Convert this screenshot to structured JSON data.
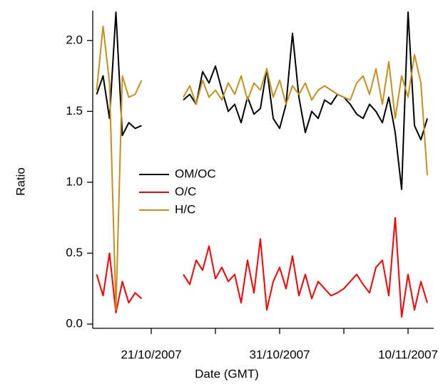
{
  "chart_data": {
    "type": "line",
    "xlabel": "Date (GMT)",
    "ylabel": "Ratio",
    "x": [
      "2007-10-16T18:00",
      "2007-10-17T06:00",
      "2007-10-17T18:00",
      "2007-10-18T06:00",
      "2007-10-18T18:00",
      "2007-10-19T06:00",
      "2007-10-19T18:00",
      "2007-10-20T06:00",
      "2007-10-22T00:00",
      "2007-10-23T12:00",
      "2007-10-24T00:00",
      "2007-10-24T12:00",
      "2007-10-25T00:00",
      "2007-10-25T12:00",
      "2007-10-26T00:00",
      "2007-10-26T12:00",
      "2007-10-27T00:00",
      "2007-10-27T12:00",
      "2007-10-28T00:00",
      "2007-10-28T12:00",
      "2007-10-29T00:00",
      "2007-10-29T12:00",
      "2007-10-30T00:00",
      "2007-10-30T12:00",
      "2007-10-31T00:00",
      "2007-10-31T12:00",
      "2007-11-01T00:00",
      "2007-11-01T12:00",
      "2007-11-02T00:00",
      "2007-11-02T12:00",
      "2007-11-03T00:00",
      "2007-11-03T12:00",
      "2007-11-04T00:00",
      "2007-11-04T12:00",
      "2007-11-05T00:00",
      "2007-11-05T12:00",
      "2007-11-06T00:00",
      "2007-11-06T12:00",
      "2007-11-07T00:00",
      "2007-11-07T12:00",
      "2007-11-08T00:00",
      "2007-11-08T12:00",
      "2007-11-09T00:00",
      "2007-11-09T12:00",
      "2007-11-10T00:00",
      "2007-11-10T12:00",
      "2007-11-11T00:00",
      "2007-11-11T12:00"
    ],
    "series": [
      {
        "name": "OM/OC",
        "color": "#000000",
        "values": [
          1.62,
          1.75,
          1.45,
          2.2,
          1.33,
          1.42,
          1.38,
          1.4,
          null,
          1.58,
          1.62,
          1.55,
          1.78,
          1.7,
          1.82,
          1.65,
          1.5,
          1.55,
          1.42,
          1.6,
          1.48,
          1.52,
          1.8,
          1.45,
          1.38,
          1.55,
          2.05,
          1.6,
          1.35,
          1.5,
          1.45,
          1.58,
          1.55,
          1.62,
          1.6,
          1.55,
          1.48,
          1.45,
          1.55,
          1.5,
          1.42,
          1.6,
          1.35,
          0.95,
          2.2,
          1.4,
          1.3,
          1.45
        ]
      },
      {
        "name": "O/C",
        "color": "#ff0000",
        "values": [
          0.35,
          0.2,
          0.5,
          0.08,
          0.3,
          0.15,
          0.22,
          0.18,
          null,
          0.35,
          0.28,
          0.45,
          0.38,
          0.55,
          0.32,
          0.4,
          0.3,
          0.35,
          0.15,
          0.45,
          0.22,
          0.6,
          0.1,
          0.3,
          0.4,
          0.25,
          0.48,
          0.2,
          0.35,
          0.18,
          0.3,
          0.25,
          0.2,
          0.22,
          0.25,
          0.3,
          0.35,
          0.28,
          0.22,
          0.4,
          0.45,
          0.2,
          0.75,
          0.05,
          0.35,
          0.1,
          0.3,
          0.15
        ]
      },
      {
        "name": "H/C",
        "color": "#c8901a",
        "values": [
          1.65,
          2.1,
          1.7,
          0.1,
          1.75,
          1.6,
          1.62,
          1.72,
          null,
          1.6,
          1.68,
          1.55,
          1.72,
          1.6,
          1.65,
          1.58,
          1.7,
          1.62,
          1.75,
          1.58,
          1.7,
          1.65,
          1.8,
          1.6,
          1.72,
          1.55,
          1.68,
          1.62,
          1.7,
          1.58,
          1.65,
          1.68,
          1.65,
          1.62,
          1.6,
          1.58,
          1.7,
          1.75,
          1.62,
          1.8,
          1.55,
          1.85,
          1.45,
          1.75,
          1.6,
          1.9,
          1.7,
          1.05
        ]
      }
    ],
    "xlim": [
      "2007-10-16T10:40",
      "2007-11-12T00:00"
    ],
    "xticks": [
      {
        "value": "2007-10-21T00:00",
        "label": "21/10/2007"
      },
      {
        "value": "2007-10-31T00:00",
        "label": "31/10/2007"
      },
      {
        "value": "2007-11-10T00:00",
        "label": "10/11/2007"
      }
    ],
    "xminorticks": [
      "2007-10-26T00:00",
      "2007-11-05T00:00"
    ],
    "ylim": [
      -0.03,
      2.21
    ],
    "yticks": [
      {
        "value": 0,
        "label": "0.0"
      },
      0.5,
      {
        "value": 1,
        "label": "1.0"
      },
      1.5,
      {
        "value": 2,
        "label": "2.0"
      }
    ],
    "legend_position": "middle-left",
    "grid": false
  }
}
